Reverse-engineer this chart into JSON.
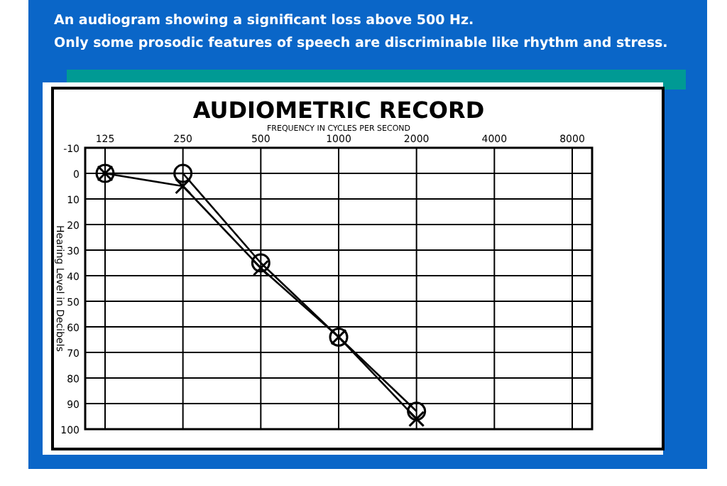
{
  "chart_data": {
    "type": "line",
    "title": "AUDIOMETRIC RECORD",
    "xlabel": "FREQUENCY IN CYCLES PER SECOND",
    "ylabel": "Hearing Level in Decibels",
    "annotations": [
      "An audiogram showing a significant loss above 500 Hz.  Only some prosodic features of speech are discriminable like rhythm and stress."
    ],
    "categories": [
      "125",
      "250",
      "500",
      "1000",
      "2000",
      "4000",
      "8000"
    ],
    "series": [
      {
        "color": "#000000",
        "marker": "circle",
        "values": [
          0,
          0,
          35,
          64,
          93,
          null,
          null
        ]
      },
      {
        "color": "#000000",
        "marker": "cross",
        "values": [
          0,
          5,
          37,
          64,
          96,
          null,
          null
        ]
      }
    ],
    "ylim": [
      100,
      -10
    ],
    "yticks": [
      -10,
      0,
      10,
      20,
      30,
      40,
      50,
      60,
      70,
      80,
      90,
      100
    ],
    "grid": true,
    "line_style": "solid"
  }
}
